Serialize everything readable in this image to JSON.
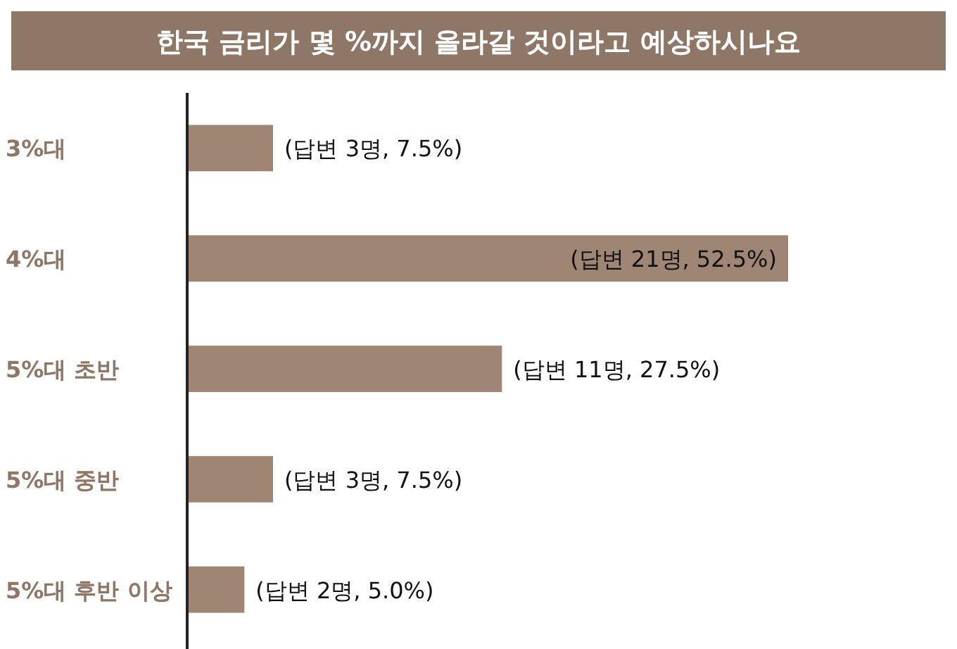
{
  "chart_data": {
    "type": "bar",
    "orientation": "horizontal",
    "title": "한국 금리가 몇 %까지 올라갈 것이라고 예상하시나요",
    "categories": [
      "3%대",
      "4%대",
      "5%대 초반",
      "5%대 중반",
      "5%대 후반 이상"
    ],
    "values": [
      7.5,
      52.5,
      27.5,
      7.5,
      5.0
    ],
    "value_labels": [
      "(답변 3명, 7.5%)",
      "(답변 21명, 52.5%)",
      "(답변 11명, 27.5%)",
      "(답변 3명, 7.5%)",
      "(답변 2명, 5.0%)"
    ],
    "color": "#9f8574"
  }
}
